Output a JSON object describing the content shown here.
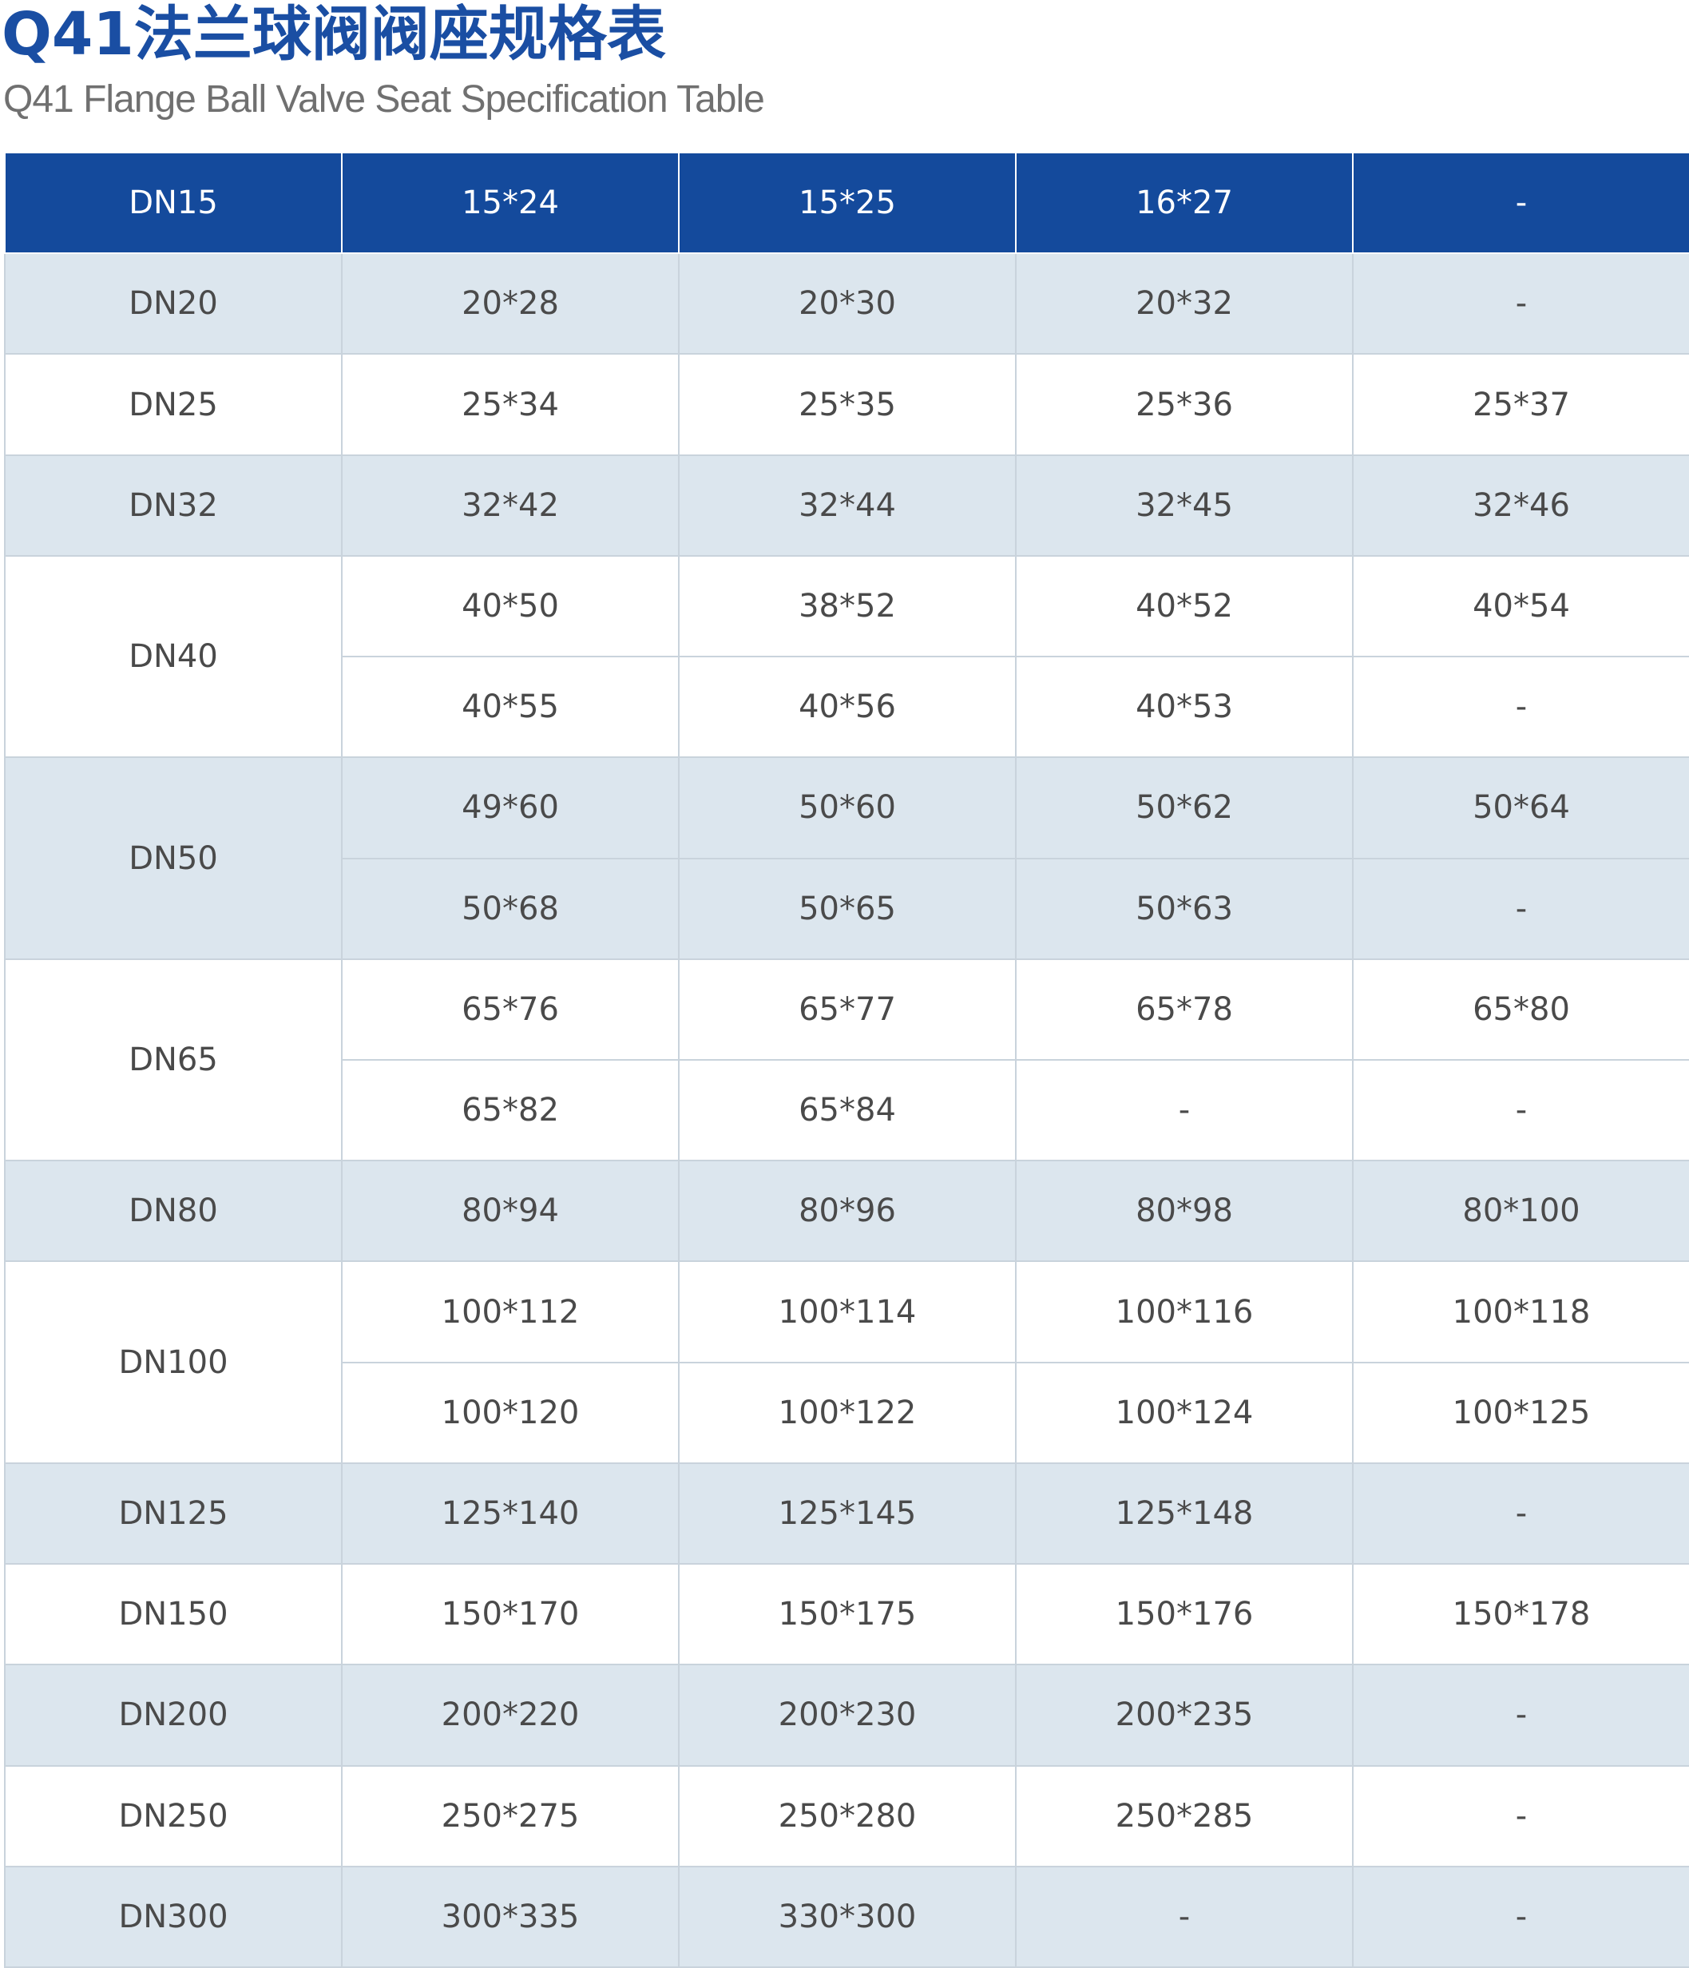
{
  "title": "Q41法兰球阀阀座规格表",
  "subtitle": "Q41 Flange Ball Valve Seat Specification Table",
  "colors": {
    "title": "#1a4ea3",
    "header_background": "#144a9c",
    "band_light_blue": "#dce6ee",
    "band_white": "#ffffff",
    "text": "#4a4a4a"
  },
  "table": {
    "groups": [
      {
        "dn": "DN15",
        "band": "header",
        "rows": [
          [
            "15*24",
            "15*25",
            "16*27",
            "-"
          ]
        ]
      },
      {
        "dn": "DN20",
        "band": "blue",
        "rows": [
          [
            "20*28",
            "20*30",
            "20*32",
            "-"
          ]
        ]
      },
      {
        "dn": "DN25",
        "band": "white",
        "rows": [
          [
            "25*34",
            "25*35",
            "25*36",
            "25*37"
          ]
        ]
      },
      {
        "dn": "DN32",
        "band": "blue",
        "rows": [
          [
            "32*42",
            "32*44",
            "32*45",
            "32*46"
          ]
        ]
      },
      {
        "dn": "DN40",
        "band": "white",
        "rows": [
          [
            "40*50",
            "38*52",
            "40*52",
            "40*54"
          ],
          [
            "40*55",
            "40*56",
            "40*53",
            "-"
          ]
        ]
      },
      {
        "dn": "DN50",
        "band": "blue",
        "rows": [
          [
            "49*60",
            "50*60",
            "50*62",
            "50*64"
          ],
          [
            "50*68",
            "50*65",
            "50*63",
            "-"
          ]
        ]
      },
      {
        "dn": "DN65",
        "band": "white",
        "rows": [
          [
            "65*76",
            "65*77",
            "65*78",
            "65*80"
          ],
          [
            "65*82",
            "65*84",
            "-",
            "-"
          ]
        ]
      },
      {
        "dn": "DN80",
        "band": "blue",
        "rows": [
          [
            "80*94",
            "80*96",
            "80*98",
            "80*100"
          ]
        ]
      },
      {
        "dn": "DN100",
        "band": "white",
        "rows": [
          [
            "100*112",
            "100*114",
            "100*116",
            "100*118"
          ],
          [
            "100*120",
            "100*122",
            "100*124",
            "100*125"
          ]
        ]
      },
      {
        "dn": "DN125",
        "band": "blue",
        "rows": [
          [
            "125*140",
            "125*145",
            "125*148",
            "-"
          ]
        ]
      },
      {
        "dn": "DN150",
        "band": "white",
        "rows": [
          [
            "150*170",
            "150*175",
            "150*176",
            "150*178"
          ]
        ]
      },
      {
        "dn": "DN200",
        "band": "blue",
        "rows": [
          [
            "200*220",
            "200*230",
            "200*235",
            "-"
          ]
        ]
      },
      {
        "dn": "DN250",
        "band": "white",
        "rows": [
          [
            "250*275",
            "250*280",
            "250*285",
            "-"
          ]
        ]
      },
      {
        "dn": "DN300",
        "band": "blue",
        "rows": [
          [
            "300*335",
            "330*300",
            "-",
            "-"
          ]
        ]
      }
    ]
  }
}
